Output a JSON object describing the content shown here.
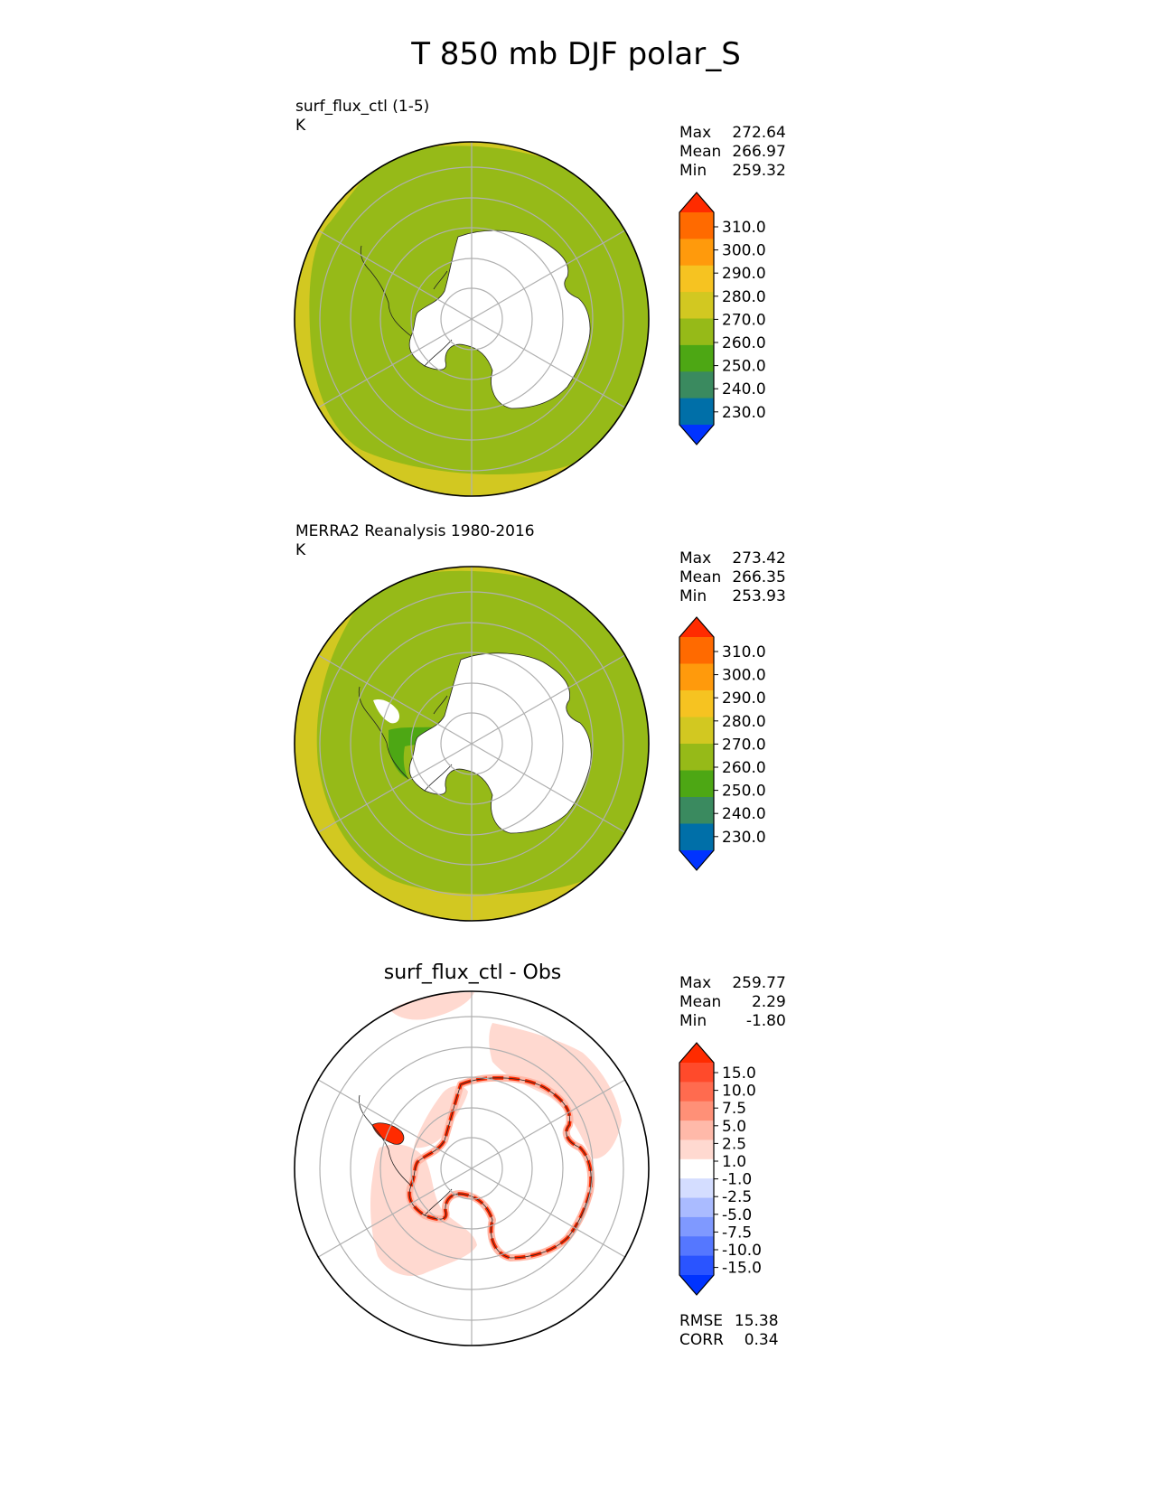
{
  "title": "T 850 mb DJF polar_S",
  "colors": {
    "land": "#ffffff",
    "coast": "#222222",
    "grid": "#b0b0b0",
    "abs_levels": [
      "#0033ff",
      "#006fa8",
      "#3a8a5f",
      "#4da714",
      "#96ba18",
      "#d2c821",
      "#f6c321",
      "#ff9a0c",
      "#ff6a00",
      "#ff2b00"
    ],
    "diff_levels": [
      "#0033ff",
      "#2a54ff",
      "#5577ff",
      "#7f99ff",
      "#aabbff",
      "#d4ddff",
      "#ffffff",
      "#ffd9d0",
      "#ffb9a9",
      "#ff9077",
      "#ff6b4f",
      "#ff4a2b",
      "#ff2b00"
    ]
  },
  "panels": [
    {
      "title": "surf_flux_ctl (1-5)",
      "units": "K",
      "stats": [
        {
          "label": "Max",
          "value": "272.64"
        },
        {
          "label": "Mean",
          "value": "266.97"
        },
        {
          "label": "Min",
          "value": "259.32"
        }
      ],
      "colorbar": [
        "310.0",
        "300.0",
        "290.0",
        "280.0",
        "270.0",
        "260.0",
        "250.0",
        "240.0",
        "230.0"
      ]
    },
    {
      "title": "MERRA2 Reanalysis 1980-2016",
      "units": "K",
      "stats": [
        {
          "label": "Max",
          "value": "273.42"
        },
        {
          "label": "Mean",
          "value": "266.35"
        },
        {
          "label": "Min",
          "value": "253.93"
        }
      ],
      "colorbar": [
        "310.0",
        "300.0",
        "290.0",
        "280.0",
        "270.0",
        "260.0",
        "250.0",
        "240.0",
        "230.0"
      ]
    },
    {
      "title": "surf_flux_ctl - Obs",
      "units": "",
      "stats": [
        {
          "label": "Max",
          "value": "259.77"
        },
        {
          "label": "Mean",
          "value": "2.29"
        },
        {
          "label": "Min",
          "value": "-1.80"
        }
      ],
      "colorbar": [
        "15.0",
        "10.0",
        "7.5",
        "5.0",
        "2.5",
        "1.0",
        "-1.0",
        "-2.5",
        "-5.0",
        "-7.5",
        "-10.0",
        "-15.0"
      ],
      "metrics": [
        {
          "label": "RMSE",
          "value": "15.38"
        },
        {
          "label": "CORR",
          "value": "0.34"
        }
      ]
    }
  ],
  "chart_data": [
    {
      "type": "heatmap",
      "title": "surf_flux_ctl (1-5)",
      "units": "K",
      "projection": "polar_S",
      "stats": {
        "max": 272.64,
        "mean": 266.97,
        "min": 259.32
      },
      "levels": [
        230,
        240,
        250,
        260,
        270,
        280,
        290,
        300,
        310
      ],
      "dominant_range": [
        260,
        270
      ],
      "outer_ring_range": [
        270,
        280
      ]
    },
    {
      "type": "heatmap",
      "title": "MERRA2 Reanalysis 1980-2016",
      "units": "K",
      "projection": "polar_S",
      "stats": {
        "max": 273.42,
        "mean": 266.35,
        "min": 253.93
      },
      "levels": [
        230,
        240,
        250,
        260,
        270,
        280,
        290,
        300,
        310
      ],
      "dominant_range": [
        260,
        270
      ],
      "outer_ring_range": [
        270,
        280
      ]
    },
    {
      "type": "heatmap",
      "title": "surf_flux_ctl - Obs",
      "projection": "polar_S",
      "stats": {
        "max": 259.77,
        "mean": 2.29,
        "min": -1.8
      },
      "levels": [
        -15,
        -10,
        -7.5,
        -5,
        -2.5,
        -1,
        1,
        2.5,
        5,
        7.5,
        10,
        15
      ],
      "metrics": {
        "rmse": 15.38,
        "corr": 0.34
      }
    }
  ]
}
